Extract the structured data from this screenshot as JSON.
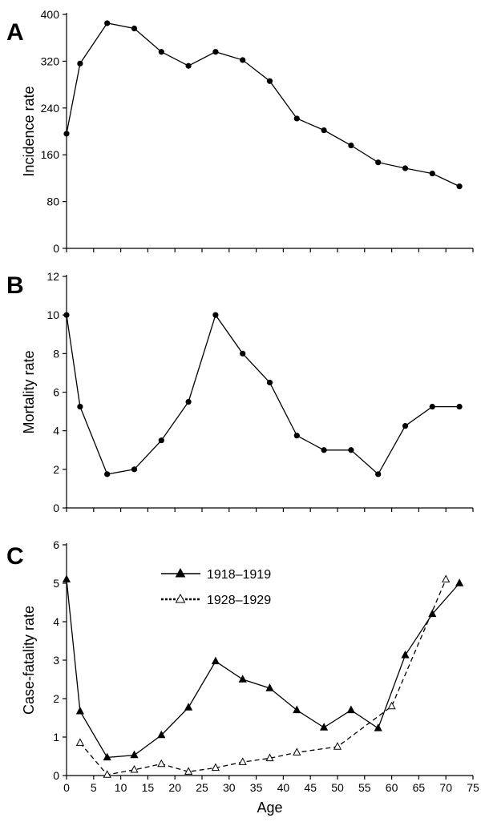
{
  "chart_data": [
    {
      "panel": "A",
      "type": "line",
      "ylabel": "Incidence rate",
      "ylim": [
        0,
        400
      ],
      "yticks": [
        0,
        80,
        160,
        240,
        320,
        400
      ],
      "series": [
        {
          "marker": "filled-circle",
          "line": "solid",
          "x": [
            0,
            2.5,
            7.5,
            12.5,
            17.5,
            22.5,
            27.5,
            32.5,
            37.5,
            42.5,
            47.5,
            52.5,
            57.5,
            62.5,
            67.5,
            72.5
          ],
          "y": [
            196,
            316,
            385,
            376,
            336,
            312,
            336,
            322,
            286,
            222,
            202,
            176,
            147,
            137,
            128,
            106
          ]
        }
      ]
    },
    {
      "panel": "B",
      "type": "line",
      "ylabel": "Mortality rate",
      "ylim": [
        0,
        12
      ],
      "yticks": [
        0,
        2,
        4,
        6,
        8,
        10,
        12
      ],
      "series": [
        {
          "marker": "filled-circle",
          "line": "solid",
          "x": [
            0,
            2.5,
            7.5,
            12.5,
            17.5,
            22.5,
            27.5,
            32.5,
            37.5,
            42.5,
            47.5,
            52.5,
            57.5,
            62.5,
            67.5,
            72.5
          ],
          "y": [
            10,
            5.25,
            1.75,
            2.0,
            3.5,
            5.5,
            10,
            8.0,
            6.5,
            3.75,
            3.0,
            3.0,
            1.75,
            4.25,
            5.25,
            5.25
          ]
        }
      ]
    },
    {
      "panel": "C",
      "type": "line",
      "xlabel": "Age",
      "ylabel": "Case-fatality rate",
      "xlim": [
        0,
        75
      ],
      "xticks": [
        0,
        5,
        10,
        15,
        20,
        25,
        30,
        35,
        40,
        45,
        50,
        55,
        60,
        65,
        70,
        75
      ],
      "ylim": [
        0,
        6
      ],
      "yticks": [
        0,
        1,
        2,
        3,
        4,
        5,
        6
      ],
      "legend_position": "top-center",
      "series": [
        {
          "name": "1918–1919",
          "marker": "filled-triangle",
          "line": "solid",
          "x": [
            0,
            2.5,
            7.5,
            12.5,
            17.5,
            22.5,
            27.5,
            32.5,
            37.5,
            42.5,
            47.5,
            52.5,
            57.5,
            62.5,
            67.5,
            72.5
          ],
          "y": [
            5.1,
            1.67,
            0.47,
            0.53,
            1.05,
            1.77,
            2.97,
            2.5,
            2.27,
            1.7,
            1.25,
            1.7,
            1.23,
            3.13,
            4.2,
            5.0
          ]
        },
        {
          "name": "1928–1929",
          "marker": "open-triangle",
          "line": "dashed",
          "x": [
            2.5,
            7.5,
            12.5,
            17.5,
            22.5,
            27.5,
            32.5,
            37.5,
            42.5,
            50,
            60,
            70
          ],
          "y": [
            0.85,
            0.02,
            0.15,
            0.3,
            0.1,
            0.2,
            0.35,
            0.45,
            0.6,
            0.75,
            1.8,
            5.1
          ]
        }
      ]
    }
  ]
}
